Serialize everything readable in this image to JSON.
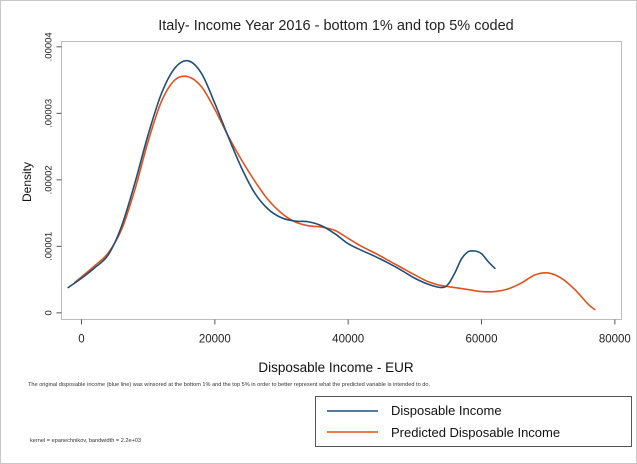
{
  "chart_data": {
    "type": "line",
    "title": "Italy- Income Year 2016 - bottom 1% and top 5% coded",
    "xlabel": "Disposable Income - EUR",
    "ylabel": "Density",
    "xlim": [
      -3000,
      81000
    ],
    "ylim": [
      -1e-06,
      4.08e-05
    ],
    "x_ticks": [
      {
        "value": 0,
        "label": "0"
      },
      {
        "value": 20000,
        "label": "20000"
      },
      {
        "value": 40000,
        "label": "40000"
      },
      {
        "value": 60000,
        "label": "60000"
      },
      {
        "value": 80000,
        "label": "80000"
      }
    ],
    "y_ticks": [
      {
        "value": 0,
        "label": "0"
      },
      {
        "value": 1e-05,
        "label": ".00001"
      },
      {
        "value": 2e-05,
        "label": ".00002"
      },
      {
        "value": 3e-05,
        "label": ".00003"
      },
      {
        "value": 4e-05,
        "label": ".00004"
      }
    ],
    "grid": false,
    "legend_position": "bottom-right",
    "series": [
      {
        "name": "Disposable Income",
        "color": "#1f4e79",
        "points": [
          [
            -2000,
            3.8e-06
          ],
          [
            0,
            5.2e-06
          ],
          [
            2000,
            6.8e-06
          ],
          [
            4000,
            8.7e-06
          ],
          [
            6000,
            1.3e-05
          ],
          [
            8000,
            1.95e-05
          ],
          [
            10000,
            2.68e-05
          ],
          [
            12000,
            3.3e-05
          ],
          [
            14000,
            3.68e-05
          ],
          [
            16000,
            3.79e-05
          ],
          [
            18000,
            3.6e-05
          ],
          [
            20000,
            3.15e-05
          ],
          [
            22000,
            2.65e-05
          ],
          [
            24000,
            2.18e-05
          ],
          [
            26000,
            1.8e-05
          ],
          [
            28000,
            1.56e-05
          ],
          [
            30000,
            1.43e-05
          ],
          [
            32000,
            1.38e-05
          ],
          [
            34000,
            1.37e-05
          ],
          [
            36000,
            1.31e-05
          ],
          [
            38000,
            1.19e-05
          ],
          [
            40000,
            1.04e-05
          ],
          [
            42000,
            9.4e-06
          ],
          [
            44000,
            8.5e-06
          ],
          [
            46000,
            7.5e-06
          ],
          [
            48000,
            6.4e-06
          ],
          [
            50000,
            5.2e-06
          ],
          [
            52000,
            4.3e-06
          ],
          [
            54000,
            3.8e-06
          ],
          [
            55000,
            4.3e-06
          ],
          [
            56000,
            6e-06
          ],
          [
            57000,
            8.1e-06
          ],
          [
            58000,
            9.2e-06
          ],
          [
            59000,
            9.3e-06
          ],
          [
            60000,
            8.9e-06
          ],
          [
            61000,
            7.7e-06
          ],
          [
            62000,
            6.7e-06
          ]
        ]
      },
      {
        "name": "Predicted Disposable Income",
        "color": "#e0521c",
        "points": [
          [
            -1000,
            4.6e-06
          ],
          [
            0,
            5.4e-06
          ],
          [
            2000,
            7.1e-06
          ],
          [
            4000,
            9e-06
          ],
          [
            6000,
            1.25e-05
          ],
          [
            8000,
            1.85e-05
          ],
          [
            10000,
            2.58e-05
          ],
          [
            12000,
            3.18e-05
          ],
          [
            14000,
            3.5e-05
          ],
          [
            16000,
            3.55e-05
          ],
          [
            18000,
            3.4e-05
          ],
          [
            20000,
            3.06e-05
          ],
          [
            22000,
            2.66e-05
          ],
          [
            24000,
            2.3e-05
          ],
          [
            26000,
            1.98e-05
          ],
          [
            28000,
            1.7e-05
          ],
          [
            30000,
            1.5e-05
          ],
          [
            32000,
            1.37e-05
          ],
          [
            34000,
            1.31e-05
          ],
          [
            36000,
            1.29e-05
          ],
          [
            38000,
            1.24e-05
          ],
          [
            40000,
            1.12e-05
          ],
          [
            42000,
            1e-05
          ],
          [
            44000,
            9e-06
          ],
          [
            46000,
            7.9e-06
          ],
          [
            48000,
            6.8e-06
          ],
          [
            50000,
            5.7e-06
          ],
          [
            52000,
            4.7e-06
          ],
          [
            54000,
            4.1e-06
          ],
          [
            56000,
            3.8e-06
          ],
          [
            58000,
            3.5e-06
          ],
          [
            60000,
            3.2e-06
          ],
          [
            62000,
            3.2e-06
          ],
          [
            64000,
            3.6e-06
          ],
          [
            66000,
            4.5e-06
          ],
          [
            68000,
            5.7e-06
          ],
          [
            70000,
            6e-06
          ],
          [
            72000,
            5.2e-06
          ],
          [
            74000,
            3.5e-06
          ],
          [
            76000,
            1.3e-06
          ],
          [
            77000,
            5e-07
          ]
        ]
      }
    ]
  },
  "note": "The original disposable income (blue line) was winsored at the bottom 1% and the top 5% in order to better represent what the predicted variable is intended to do.",
  "kernel_note": "kernel = epanechnikov, bandwidth = 2.2e+03"
}
